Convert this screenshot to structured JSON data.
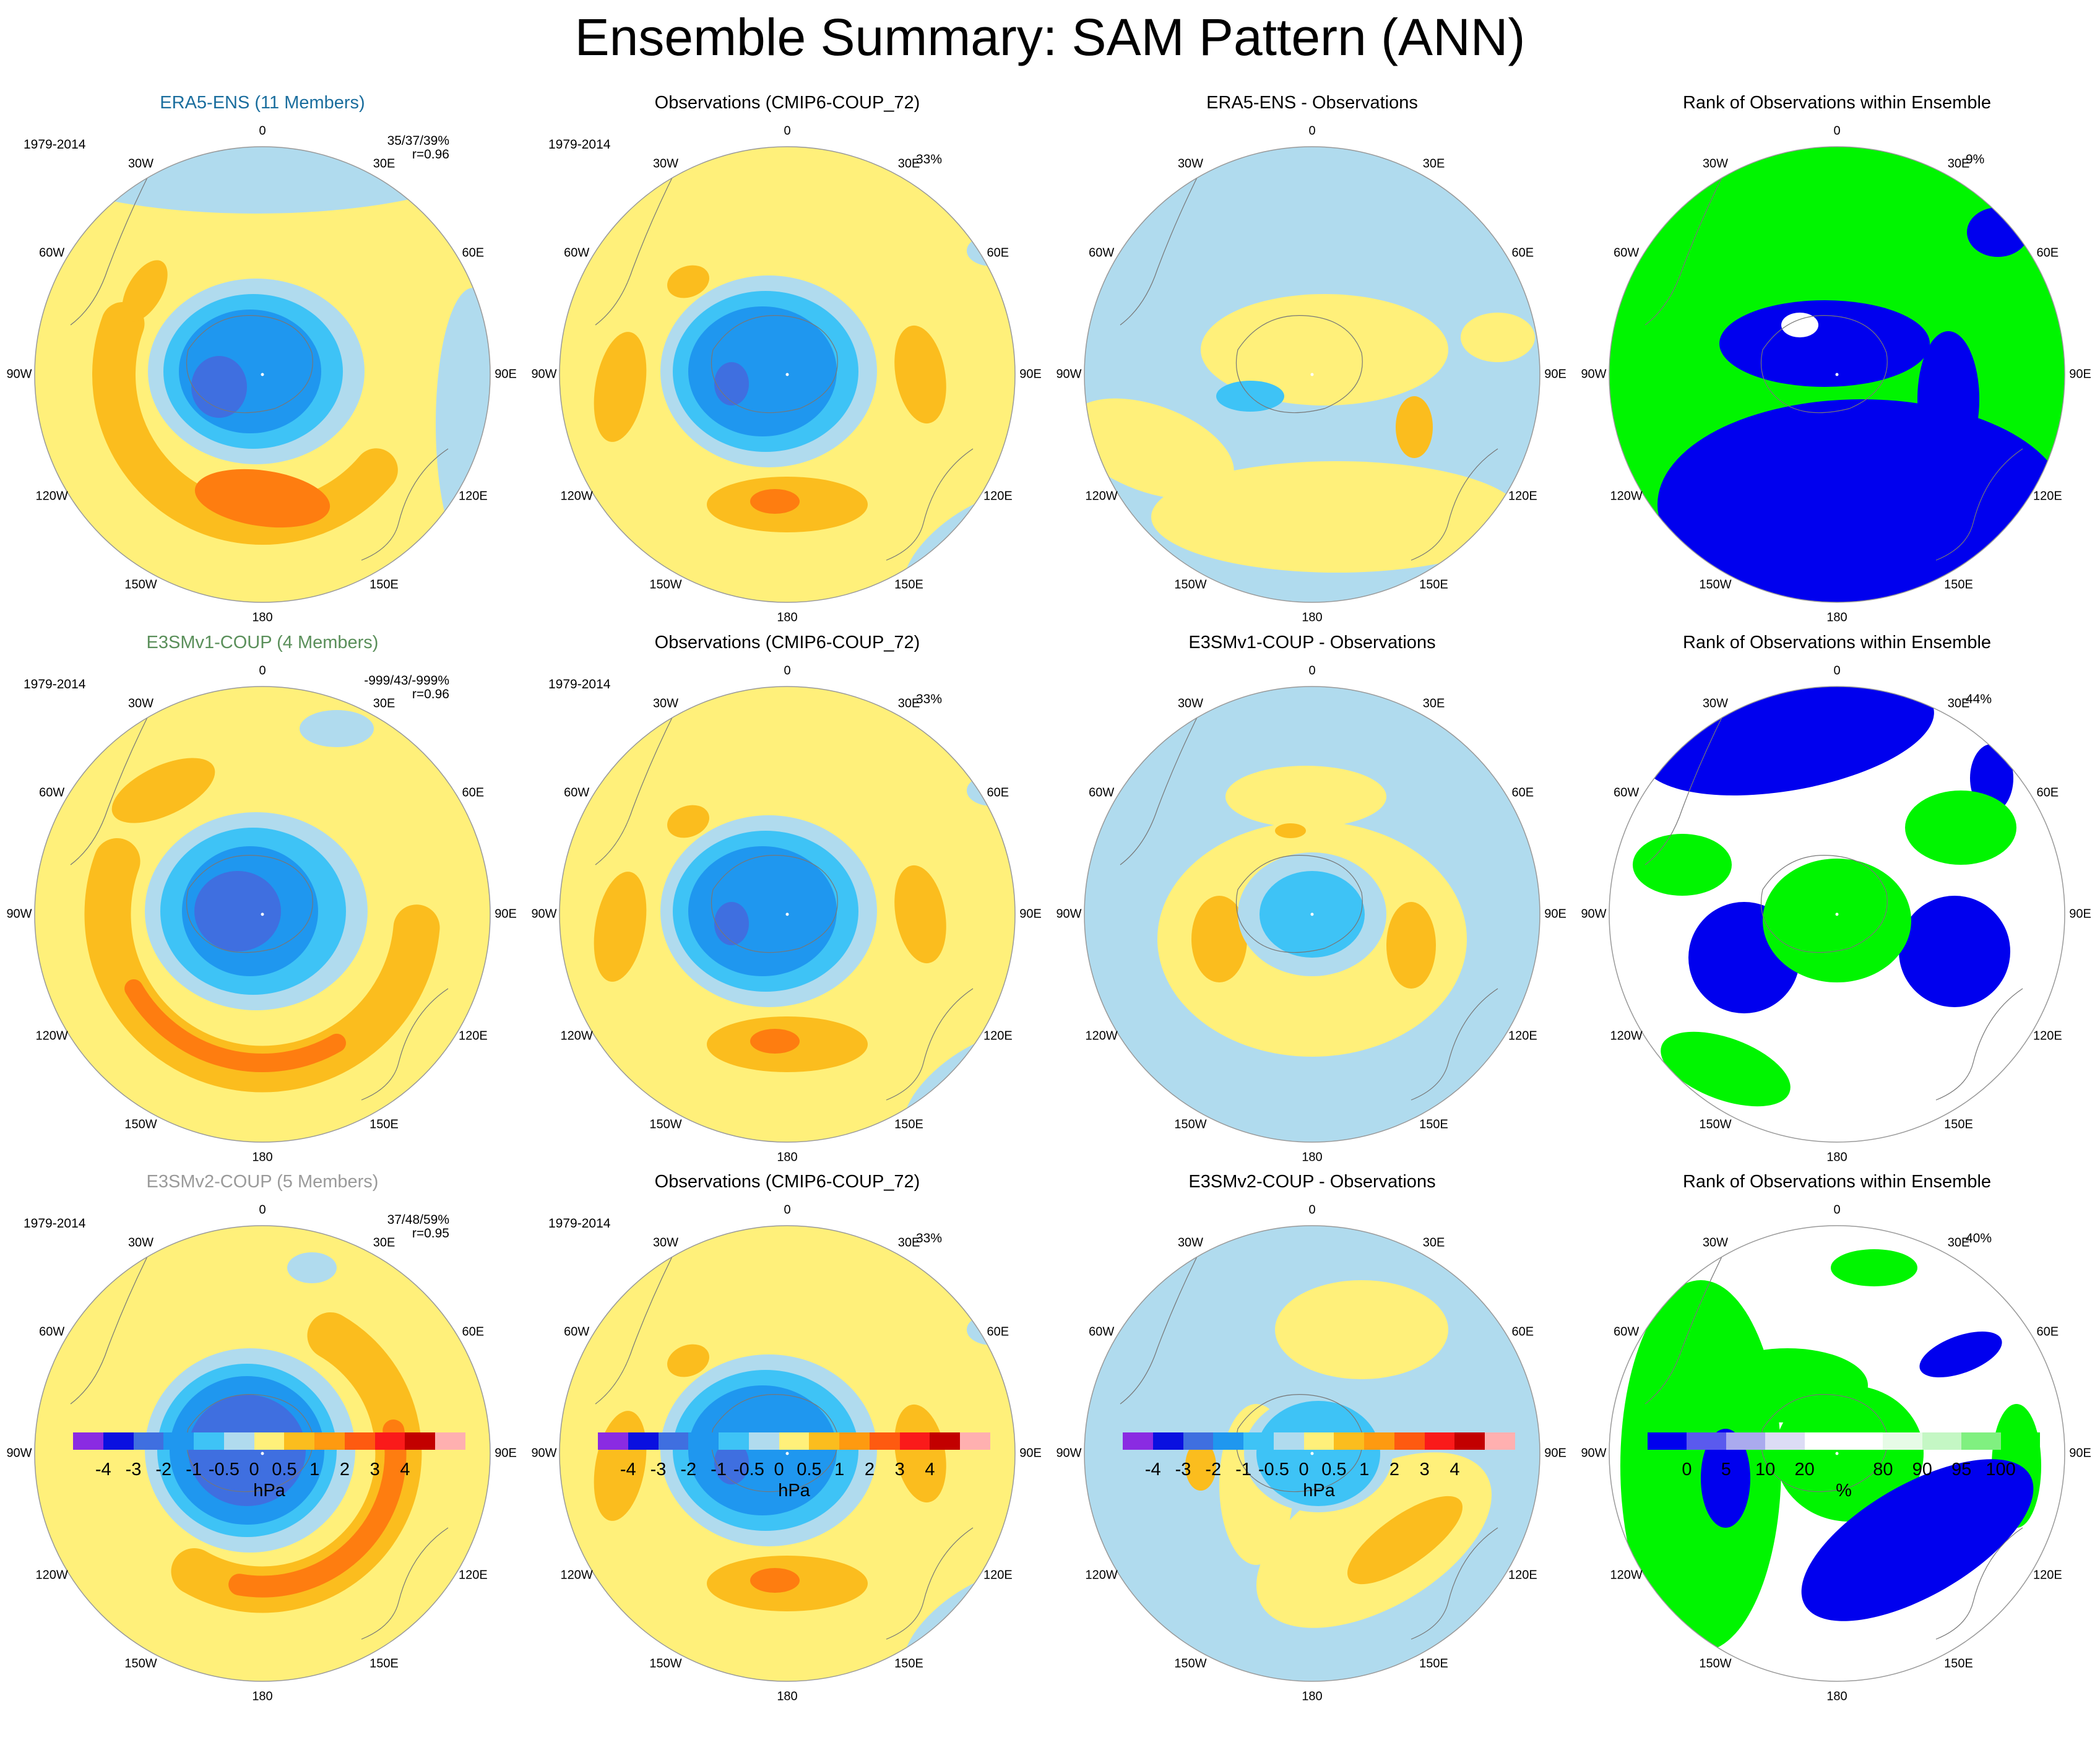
{
  "title": "Ensemble Summary: SAM Pattern (ANN)",
  "lon_labels": [
    "0",
    "30E",
    "60E",
    "90E",
    "120E",
    "150E",
    "180",
    "150W",
    "120W",
    "90W",
    "60W",
    "30W"
  ],
  "colors": {
    "yellow": "#fff07a",
    "lightblue": "#b0dbee",
    "blue1": "#3ec3f6",
    "blue2": "#1f97ef",
    "blue3": "#3f6fe0",
    "orange1": "#fbbd1e",
    "orange2": "#fe7d10",
    "rank_blue": "#0000ee",
    "rank_green": "#00f500",
    "ensemble_label_era5": "#1b6e9e",
    "ensemble_label_v1": "#5a8f5a",
    "ensemble_label_v2": "#9a9a9a"
  },
  "rows": [
    {
      "panels": [
        {
          "title": "ERA5-ENS (11 Members)",
          "period": "1979-2014",
          "stats": "35/37/39%",
          "stats2": "r=0.96",
          "kind": "model",
          "label_color": "ensemble_label_era5"
        },
        {
          "title": "Observations (CMIP6-COUP_72)",
          "period": "1979-2014",
          "pct": "33%",
          "kind": "obs"
        },
        {
          "title": "ERA5-ENS - Observations",
          "kind": "diff1"
        },
        {
          "title": "Rank of Observations within Ensemble",
          "pct": "9%",
          "kind": "rank1"
        }
      ]
    },
    {
      "panels": [
        {
          "title": "E3SMv1-COUP (4 Members)",
          "period": "1979-2014",
          "stats": "-999/43/-999%",
          "stats2": "r=0.96",
          "kind": "model2",
          "label_color": "ensemble_label_v1"
        },
        {
          "title": "Observations (CMIP6-COUP_72)",
          "period": "1979-2014",
          "pct": "33%",
          "kind": "obs"
        },
        {
          "title": "E3SMv1-COUP - Observations",
          "kind": "diff2"
        },
        {
          "title": "Rank of Observations within Ensemble",
          "pct": "44%",
          "kind": "rank2"
        }
      ]
    },
    {
      "panels": [
        {
          "title": "E3SMv2-COUP (5 Members)",
          "period": "1979-2014",
          "stats": "37/48/59%",
          "stats2": "r=0.95",
          "kind": "model3",
          "label_color": "ensemble_label_v2"
        },
        {
          "title": "Observations (CMIP6-COUP_72)",
          "period": "1979-2014",
          "pct": "33%",
          "kind": "obs"
        },
        {
          "title": "E3SMv2-COUP - Observations",
          "kind": "diff3"
        },
        {
          "title": "Rank of Observations within Ensemble",
          "pct": "40%",
          "kind": "rank3"
        }
      ]
    }
  ],
  "colorbars": [
    {
      "labels": [
        "-4",
        "-3",
        "-2",
        "-1",
        "-0.5",
        "0",
        "0.5",
        "1",
        "2",
        "3",
        "4"
      ],
      "unit": "hPa",
      "colors": [
        "#8a2be2",
        "#0a10e0",
        "#3f6fe0",
        "#1f97ef",
        "#3ec3f6",
        "#b0dbee",
        "#fff07a",
        "#fbbd1e",
        "#fe9a10",
        "#fe5a10",
        "#fa1a1a",
        "#c20000",
        "#ffb0b0"
      ]
    },
    {
      "labels": [
        "-4",
        "-3",
        "-2",
        "-1",
        "-0.5",
        "0",
        "0.5",
        "1",
        "2",
        "3",
        "4"
      ],
      "unit": "hPa",
      "colors": [
        "#8a2be2",
        "#0a10e0",
        "#3f6fe0",
        "#1f97ef",
        "#3ec3f6",
        "#b0dbee",
        "#fff07a",
        "#fbbd1e",
        "#fe9a10",
        "#fe5a10",
        "#fa1a1a",
        "#c20000",
        "#ffb0b0"
      ]
    },
    {
      "labels": [
        "-4",
        "-3",
        "-2",
        "-1",
        "-0.5",
        "0",
        "0.5",
        "1",
        "2",
        "3",
        "4"
      ],
      "unit": "hPa",
      "colors": [
        "#8a2be2",
        "#0a10e0",
        "#3f6fe0",
        "#1f97ef",
        "#3ec3f6",
        "#b0dbee",
        "#fff07a",
        "#fbbd1e",
        "#fe9a10",
        "#fe5a10",
        "#fa1a1a",
        "#c20000",
        "#ffb0b0"
      ]
    },
    {
      "labels": [
        "0",
        "5",
        "10",
        "20",
        "80",
        "90",
        "95",
        "100"
      ],
      "unit": "%",
      "colors": [
        "#0000ee",
        "#5a5aee",
        "#aaaaee",
        "#dcdcf5",
        "#ffffff",
        "#ffffff",
        "#e6fbe6",
        "#c4f7c4",
        "#80f080",
        "#00f500"
      ]
    }
  ],
  "chart_data": {
    "type": "heatmap",
    "title": "Ensemble Summary: SAM Pattern (ANN)",
    "projection": "south polar stereographic",
    "colorbar_levels_hPa": [
      -4,
      -3,
      -2,
      -1,
      -0.5,
      0,
      0.5,
      1,
      2,
      3,
      4
    ],
    "rank_levels_pct": [
      0,
      5,
      10,
      20,
      80,
      90,
      95,
      100
    ],
    "panels": [
      {
        "name": "ERA5-ENS (11 Members)",
        "period": "1979-2014",
        "stats": "35/37/39%",
        "r": 0.96
      },
      {
        "name": "Observations (CMIP6-COUP_72)",
        "period": "1979-2014",
        "pct": "33%"
      },
      {
        "name": "ERA5-ENS - Observations"
      },
      {
        "name": "Rank of Observations within Ensemble",
        "pct": "9%"
      },
      {
        "name": "E3SMv1-COUP (4 Members)",
        "period": "1979-2014",
        "stats": "-999/43/-999%",
        "r": 0.96
      },
      {
        "name": "E3SMv1-COUP - Observations"
      },
      {
        "name": "Rank of Observations within Ensemble",
        "pct": "44%"
      },
      {
        "name": "E3SMv2-COUP (5 Members)",
        "period": "1979-2014",
        "stats": "37/48/59%",
        "r": 0.95
      },
      {
        "name": "E3SMv2-COUP - Observations"
      },
      {
        "name": "Rank of Observations within Ensemble",
        "pct": "40%"
      }
    ]
  }
}
